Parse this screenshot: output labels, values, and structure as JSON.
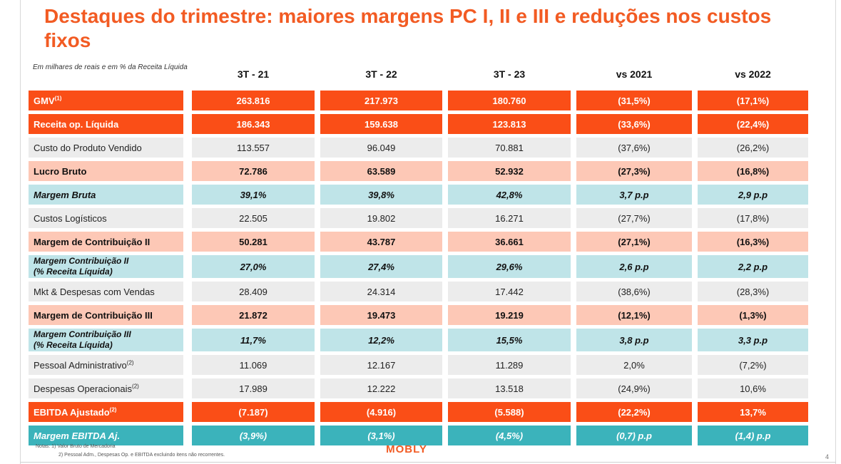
{
  "slide": {
    "title": "Destaques do trimestre: maiores margens PC I, II e III e reduções nos custos fixos",
    "subtitle": "Em milhares de reais e em % da Receita Líquida",
    "notes": [
      "Notas: 1) Valor Bruto de Mercadoria",
      "2) Pessoal Adm., Despesas Op. e EBITDA excluindo itens não recorrentes."
    ],
    "logo": "MOBLY",
    "page_number": "4"
  },
  "colors": {
    "title": "#f25b23",
    "orange_row": "#fa4e17",
    "gray_row": "#ececec",
    "peach_row": "#fdc8b6",
    "light_blue_row": "#bfe4e8",
    "teal_row": "#3bb3bb"
  },
  "table": {
    "columns": [
      "3T - 21",
      "3T - 22",
      "3T - 23",
      "vs 2021",
      "vs 2022"
    ],
    "rows": [
      {
        "label": "GMV",
        "sup": "(1)",
        "style": "orange",
        "values": [
          "263.816",
          "217.973",
          "180.760",
          "(31,5%)",
          "(17,1%)"
        ]
      },
      {
        "label": "Receita op. Líquida",
        "sup": "",
        "style": "orange",
        "values": [
          "186.343",
          "159.638",
          "123.813",
          "(33,6%)",
          "(22,4%)"
        ]
      },
      {
        "label": "Custo do Produto Vendido",
        "sup": "",
        "style": "gray",
        "values": [
          "113.557",
          "96.049",
          "70.881",
          "(37,6%)",
          "(26,2%)"
        ]
      },
      {
        "label": "Lucro Bruto",
        "sup": "",
        "style": "peach",
        "values": [
          "72.786",
          "63.589",
          "52.932",
          "(27,3%)",
          "(16,8%)"
        ]
      },
      {
        "label": "Margem Bruta",
        "sup": "",
        "style": "light",
        "values": [
          "39,1%",
          "39,8%",
          "42,8%",
          "3,7 p.p",
          "2,9 p.p"
        ]
      },
      {
        "label": "Custos Logísticos",
        "sup": "",
        "style": "gray",
        "values": [
          "22.505",
          "19.802",
          "16.271",
          "(27,7%)",
          "(17,8%)"
        ]
      },
      {
        "label": "Margem de Contribuição II",
        "sup": "",
        "style": "peach",
        "values": [
          "50.281",
          "43.787",
          "36.661",
          "(27,1%)",
          "(16,3%)"
        ]
      },
      {
        "label": "Margem Contribuição II",
        "label2": "(% Receita Líquida)",
        "sup": "",
        "style": "light",
        "values": [
          "27,0%",
          "27,4%",
          "29,6%",
          "2,6 p.p",
          "2,2 p.p"
        ]
      },
      {
        "label": "Mkt & Despesas com Vendas",
        "sup": "",
        "style": "gray",
        "values": [
          "28.409",
          "24.314",
          "17.442",
          "(38,6%)",
          "(28,3%)"
        ]
      },
      {
        "label": "Margem de Contribuição III",
        "sup": "",
        "style": "peach",
        "values": [
          "21.872",
          "19.473",
          "19.219",
          "(12,1%)",
          "(1,3%)"
        ]
      },
      {
        "label": "Margem Contribuição III",
        "label2": "(% Receita Líquida)",
        "sup": "",
        "style": "light",
        "values": [
          "11,7%",
          "12,2%",
          "15,5%",
          "3,8 p.p",
          "3,3 p.p"
        ]
      },
      {
        "label": "Pessoal Administrativo",
        "sup": "(2)",
        "style": "gray",
        "values": [
          "11.069",
          "12.167",
          "11.289",
          "2,0%",
          "(7,2%)"
        ]
      },
      {
        "label": "Despesas Operacionais",
        "sup": "(2)",
        "style": "gray",
        "values": [
          "17.989",
          "12.222",
          "13.518",
          "(24,9%)",
          "10,6%"
        ]
      },
      {
        "label": "EBITDA Ajustado",
        "sup": "(2)",
        "style": "orange",
        "values": [
          "(7.187)",
          "(4.916)",
          "(5.588)",
          "(22,2%)",
          "13,7%"
        ]
      },
      {
        "label": "Margem EBITDA Aj.",
        "sup": "",
        "style": "teal",
        "values": [
          "(3,9%)",
          "(3,1%)",
          "(4,5%)",
          "(0,7) p.p",
          "(1,4) p.p"
        ]
      }
    ]
  }
}
